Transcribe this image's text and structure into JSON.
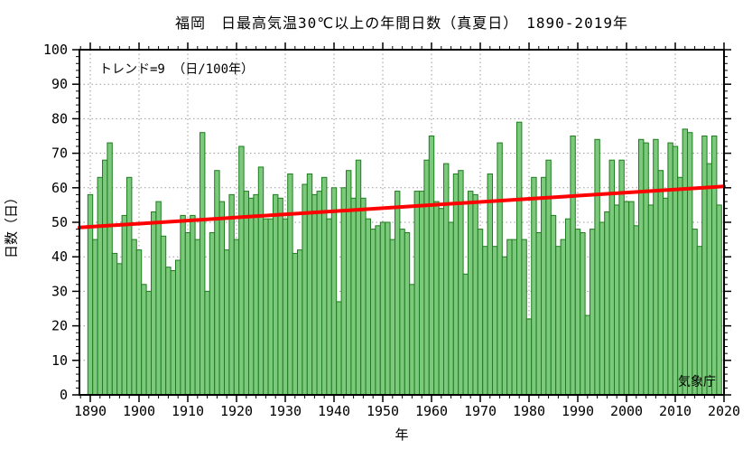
{
  "chart_data": {
    "type": "bar",
    "title": "福岡　日最高気温30℃以上の年間日数（真夏日）　1890-2019年",
    "xlabel": "年",
    "ylabel": "日数（日）",
    "source": "気象庁",
    "ylim": [
      0,
      100
    ],
    "xlim_years": [
      1890,
      2019
    ],
    "grid": "dotted",
    "legend_position": "none",
    "yticks": [
      0,
      10,
      20,
      30,
      40,
      50,
      60,
      70,
      80,
      90,
      100
    ],
    "xticks": [
      1890,
      1900,
      1910,
      1920,
      1930,
      1940,
      1950,
      1960,
      1970,
      1980,
      1990,
      2000,
      2010,
      2020
    ],
    "minor_tick_step_y": 2,
    "minor_tick_step_x": 2,
    "bar_fill_color": "#7cc87c",
    "bar_border_color": "#1e7d1e",
    "year_start": 1890,
    "values": [
      58,
      45,
      63,
      68,
      73,
      41,
      38,
      52,
      63,
      45,
      42,
      32,
      30,
      53,
      56,
      46,
      37,
      36,
      39,
      52,
      47,
      52,
      45,
      76,
      30,
      47,
      65,
      56,
      42,
      58,
      45,
      72,
      59,
      57,
      58,
      66,
      51,
      51,
      58,
      57,
      51,
      64,
      41,
      42,
      61,
      64,
      58,
      59,
      63,
      51,
      60,
      27,
      60,
      65,
      57,
      68,
      57,
      51,
      48,
      49,
      50,
      50,
      45,
      59,
      48,
      47,
      32,
      59,
      59,
      68,
      75,
      56,
      54,
      67,
      50,
      64,
      65,
      35,
      59,
      58,
      48,
      43,
      64,
      43,
      73,
      40,
      45,
      45,
      79,
      45,
      22,
      63,
      47,
      63,
      68,
      52,
      43,
      45,
      51,
      75,
      48,
      47,
      23,
      48,
      74,
      50,
      53,
      68,
      55,
      68,
      56,
      56,
      49,
      74,
      73,
      55,
      74,
      65,
      57,
      73,
      72,
      63,
      77,
      76,
      48,
      43,
      75,
      67,
      75,
      55
    ],
    "trend_line": {
      "label": "トレンド=9 （日/100年）",
      "rate_days_per_100yr": 9,
      "start_value": 48.5,
      "end_value": 60.4,
      "color": "#ff0000"
    }
  }
}
